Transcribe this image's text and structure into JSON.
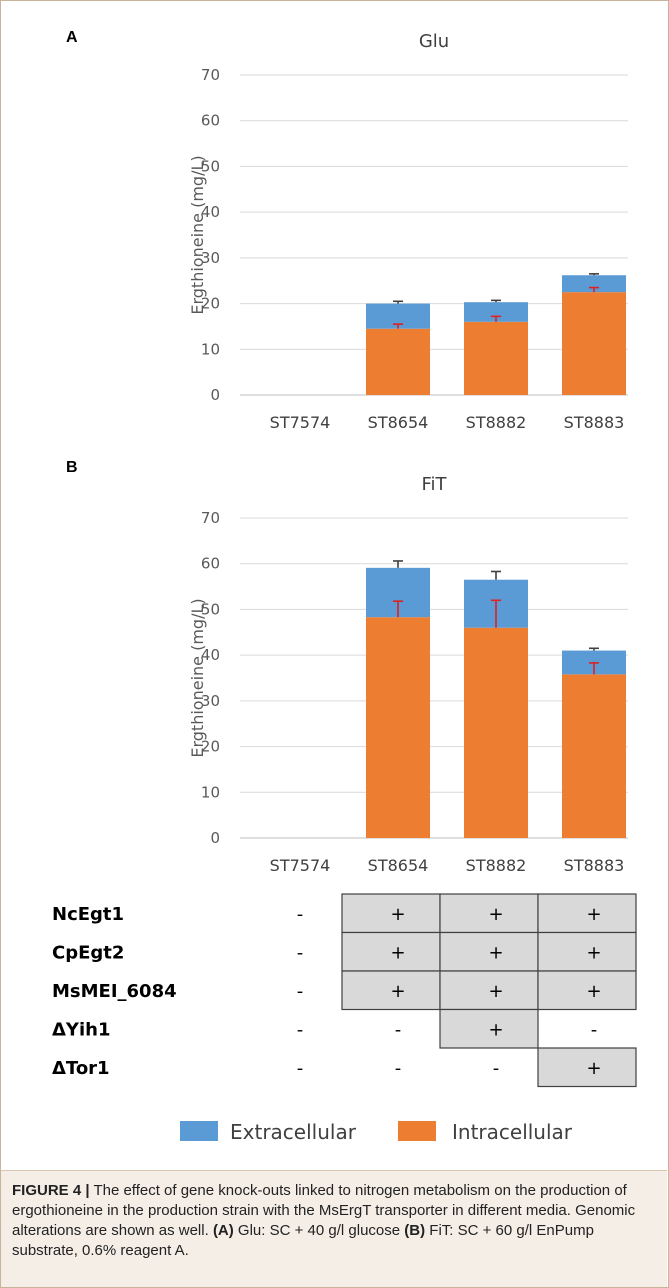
{
  "panel_labels": [
    "A",
    "B"
  ],
  "chart_data": [
    {
      "type": "bar",
      "stacked": true,
      "title": "Glu",
      "xlabel": "",
      "ylabel": "Ergthioneine (mg/L)",
      "ylim": [
        0,
        70
      ],
      "yticks": [
        0,
        10,
        20,
        30,
        40,
        50,
        60,
        70
      ],
      "grid": true,
      "categories": [
        "ST7574",
        "ST8654",
        "ST8882",
        "ST8883"
      ],
      "series": [
        {
          "name": "Intracellular",
          "color": "#ed7d31",
          "values": [
            0,
            14.5,
            16.0,
            22.5
          ],
          "error": [
            0,
            1.0,
            1.2,
            1.0
          ],
          "error_color": "#e02020"
        },
        {
          "name": "Extracellular",
          "color": "#5b9bd5",
          "values": [
            0,
            5.5,
            4.3,
            3.7
          ],
          "error": [
            0,
            0.5,
            0.4,
            0.3
          ],
          "error_color": "#404040"
        }
      ]
    },
    {
      "type": "bar",
      "stacked": true,
      "title": "FiT",
      "xlabel": "",
      "ylabel": "Ergthioneine (mg/L)",
      "ylim": [
        0,
        70
      ],
      "yticks": [
        0,
        10,
        20,
        30,
        40,
        50,
        60,
        70
      ],
      "grid": true,
      "categories": [
        "ST7574",
        "ST8654",
        "ST8882",
        "ST8883"
      ],
      "series": [
        {
          "name": "Intracellular",
          "color": "#ed7d31",
          "values": [
            0,
            48.3,
            46.0,
            35.8
          ],
          "error": [
            0,
            3.5,
            6.0,
            2.5
          ],
          "error_color": "#e02020"
        },
        {
          "name": "Extracellular",
          "color": "#5b9bd5",
          "values": [
            0,
            10.8,
            10.5,
            5.2
          ],
          "error": [
            0,
            1.5,
            1.8,
            0.5
          ],
          "error_color": "#404040"
        }
      ]
    }
  ],
  "genotype_table": {
    "rows": [
      {
        "gene": "NcEgt1",
        "marks": [
          "-",
          "+",
          "+",
          "+"
        ],
        "shaded": [
          false,
          true,
          true,
          true
        ]
      },
      {
        "gene": "CpEgt2",
        "marks": [
          "-",
          "+",
          "+",
          "+"
        ],
        "shaded": [
          false,
          true,
          true,
          true
        ]
      },
      {
        "gene": "MsMEI_6084",
        "marks": [
          "-",
          "+",
          "+",
          "+"
        ],
        "shaded": [
          false,
          true,
          true,
          true
        ]
      },
      {
        "gene": "ΔYih1",
        "marks": [
          "-",
          "-",
          "+",
          "-"
        ],
        "shaded": [
          false,
          false,
          true,
          false
        ]
      },
      {
        "gene": "ΔTor1",
        "marks": [
          "-",
          "-",
          "-",
          "+"
        ],
        "shaded": [
          false,
          false,
          false,
          true
        ]
      }
    ]
  },
  "legend": [
    {
      "label": "Extracellular",
      "color": "#5b9bd5"
    },
    {
      "label": "Intracellular",
      "color": "#ed7d31"
    }
  ],
  "caption": {
    "label": "FIGURE 4 |",
    "text1": " The effect of gene knock-outs linked to nitrogen metabolism on the production of ergothioneine in the production strain with the MsErgT transporter in different media. Genomic alterations are shown as well. ",
    "a_label": "(A)",
    "a_text": " Glu: SC + 40 g/l glucose ",
    "b_label": "(B)",
    "b_text": " FiT: SC + 60 g/l EnPump substrate, 0.6% reagent A."
  }
}
